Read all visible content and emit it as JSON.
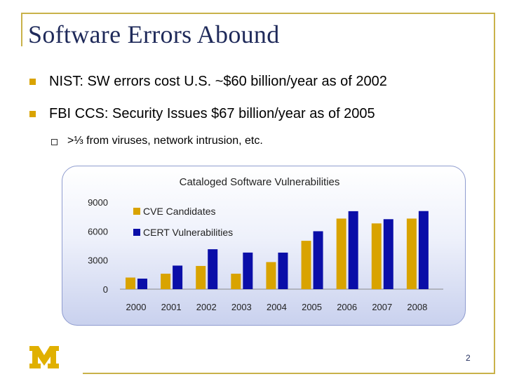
{
  "slide": {
    "title": "Software Errors Abound",
    "bullets": [
      "NIST: SW errors cost U.S. ~$60 billion/year as of 2002",
      "FBI CCS: Security Issues $67 billion/year as of 2005"
    ],
    "sub_bullet": ">⅓ from viruses, network intrusion, etc.",
    "page_number": "2",
    "colors": {
      "title": "#1f2a5a",
      "bullet": "#d9a300",
      "frame": "#c9b24a",
      "logo": "#e0b000"
    }
  },
  "chart_data": {
    "type": "bar",
    "title": "Cataloged Software Vulnerabilities",
    "categories": [
      "2000",
      "2001",
      "2002",
      "2003",
      "2004",
      "2005",
      "2006",
      "2007",
      "2008"
    ],
    "series": [
      {
        "name": "CVE Candidates",
        "color": "#d9a300",
        "values": [
          1200,
          1600,
          2400,
          1600,
          2800,
          5000,
          7300,
          6800,
          7300
        ]
      },
      {
        "name": "CERT Vulnerabilities",
        "color": "#0a0ea8",
        "values": [
          1090,
          2437,
          4129,
          3784,
          3780,
          5990,
          8064,
          7236,
          8077
        ]
      }
    ],
    "yticks": [
      "0",
      "3000",
      "6000",
      "9000"
    ],
    "ylim": [
      0,
      9000
    ],
    "grid": false,
    "legend": "top-left"
  }
}
